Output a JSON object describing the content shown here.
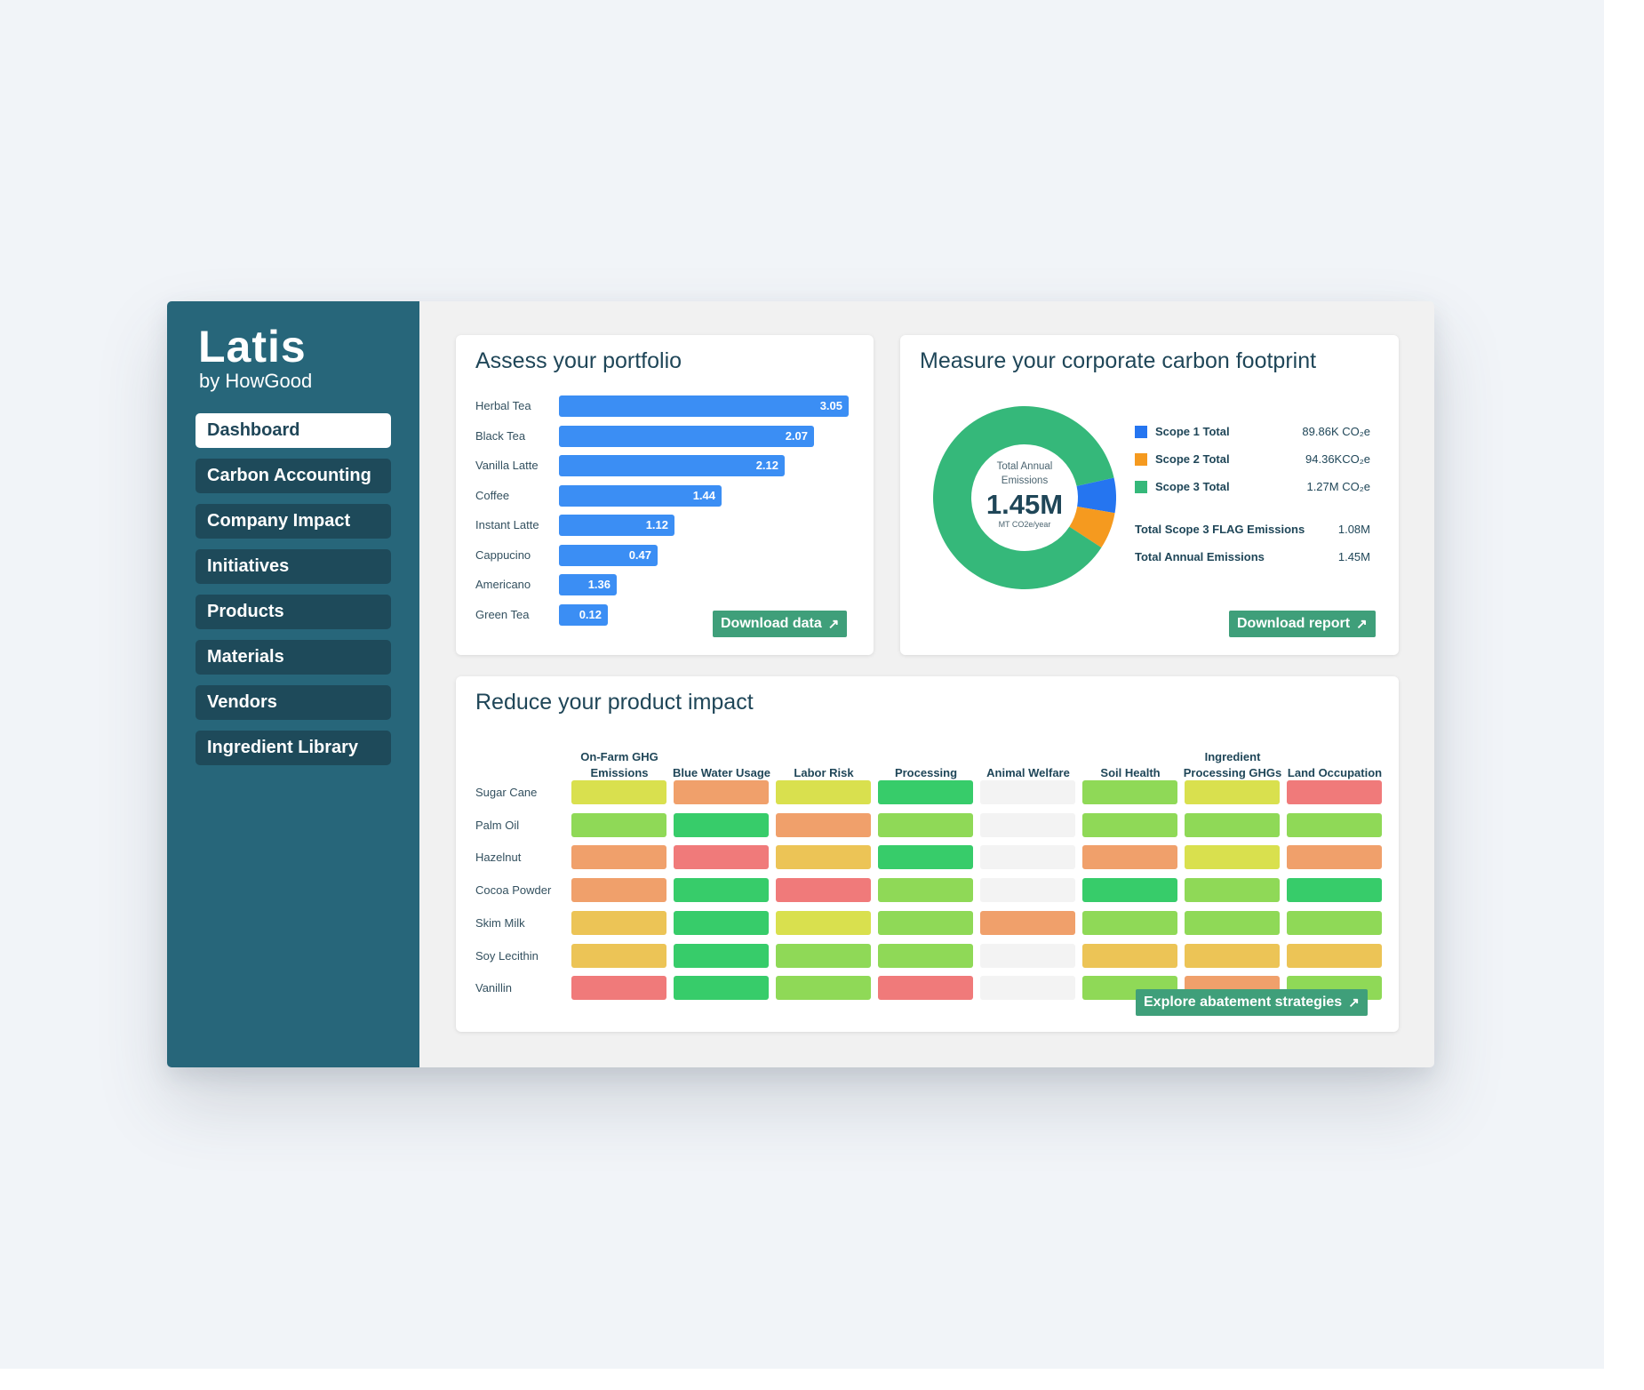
{
  "colors": {
    "sidebar": "#27667a",
    "bar": "#3b8ef4",
    "button": "#3f9f7a",
    "scope1": "#2575f0",
    "scope2": "#f59a1f",
    "scope3": "#35b87a",
    "heat_green": "#37cc6a",
    "heat_lightgreen": "#8fd957",
    "heat_yellow": "#d9e04e",
    "heat_amber": "#ecc456",
    "heat_orange": "#f0a06b",
    "heat_red": "#f07a7a",
    "heat_empty": "#f3f3f3"
  },
  "sidebar": {
    "logo_title": "Latis",
    "logo_sub": "by HowGood",
    "nav": [
      {
        "label": "Dashboard",
        "active": true
      },
      {
        "label": "Carbon Accounting"
      },
      {
        "label": "Company Impact"
      },
      {
        "label": "Initiatives"
      },
      {
        "label": "Products"
      },
      {
        "label": "Materials"
      },
      {
        "label": "Vendors"
      },
      {
        "label": "Ingredient Library"
      }
    ]
  },
  "portfolio": {
    "title": "Assess your portfolio",
    "button": "Download data",
    "chart_data": {
      "type": "bar",
      "orientation": "horizontal",
      "categories": [
        "Herbal Tea",
        "Black Tea",
        "Vanilla Latte",
        "Coffee",
        "Instant Latte",
        "Cappucino",
        "Americano",
        "Green Tea"
      ],
      "values": [
        3.05,
        2.07,
        2.12,
        1.44,
        1.12,
        0.47,
        1.36,
        0.12
      ],
      "value_labels": [
        "3.05",
        "2.07",
        "2.12",
        "1.44",
        "1.12",
        "0.47",
        "1.36",
        "0.12"
      ],
      "bar_fill": [
        1.0,
        0.88,
        0.78,
        0.56,
        0.4,
        0.34,
        0.2,
        0.17
      ]
    }
  },
  "footprint": {
    "title": "Measure your corporate carbon footprint",
    "center_label": "Total Annual Emissions",
    "center_value": "1.45M",
    "center_unit": "MT CO2e/year",
    "button": "Download report",
    "chart_data": {
      "type": "pie",
      "categories": [
        "Scope 1 Total",
        "Scope 2 Total",
        "Scope 3 Total"
      ],
      "values": [
        89.86,
        94.36,
        1270
      ],
      "value_labels": [
        "89.86K CO₂e",
        "94.36KCO₂e",
        "1.27M CO₂e"
      ]
    },
    "totals": [
      {
        "label": "Total Scope 3 FLAG Emissions",
        "value": "1.08M"
      },
      {
        "label": "Total Annual Emissions",
        "value": "1.45M"
      }
    ]
  },
  "impact": {
    "title": "Reduce your product impact",
    "button": "Explore abatement strategies",
    "chart_data": {
      "type": "heatmap",
      "columns": [
        "On-Farm GHG Emissions",
        "Blue Water Usage",
        "Labor Risk",
        "Processing",
        "Animal Welfare",
        "Soil Health",
        "Ingredient Processing GHGs",
        "Land Occupation"
      ],
      "rows": [
        "Sugar Cane",
        "Palm Oil",
        "Hazelnut",
        "Cocoa Powder",
        "Skim Milk",
        "Soy Lecithin",
        "Vanillin"
      ],
      "cells": [
        [
          "yellow",
          "orange",
          "yellow",
          "green",
          "empty",
          "lightgreen",
          "yellow",
          "red"
        ],
        [
          "lightgreen",
          "green",
          "orange",
          "lightgreen",
          "empty",
          "lightgreen",
          "lightgreen",
          "lightgreen"
        ],
        [
          "orange",
          "red",
          "amber",
          "green",
          "empty",
          "orange",
          "yellow",
          "orange"
        ],
        [
          "orange",
          "green",
          "red",
          "lightgreen",
          "empty",
          "green",
          "lightgreen",
          "green"
        ],
        [
          "amber",
          "green",
          "yellow",
          "lightgreen",
          "orange",
          "lightgreen",
          "lightgreen",
          "lightgreen"
        ],
        [
          "amber",
          "green",
          "lightgreen",
          "lightgreen",
          "empty",
          "amber",
          "amber",
          "amber"
        ],
        [
          "red",
          "green",
          "lightgreen",
          "red",
          "empty",
          "lightgreen",
          "orange",
          "lightgreen"
        ]
      ]
    }
  }
}
